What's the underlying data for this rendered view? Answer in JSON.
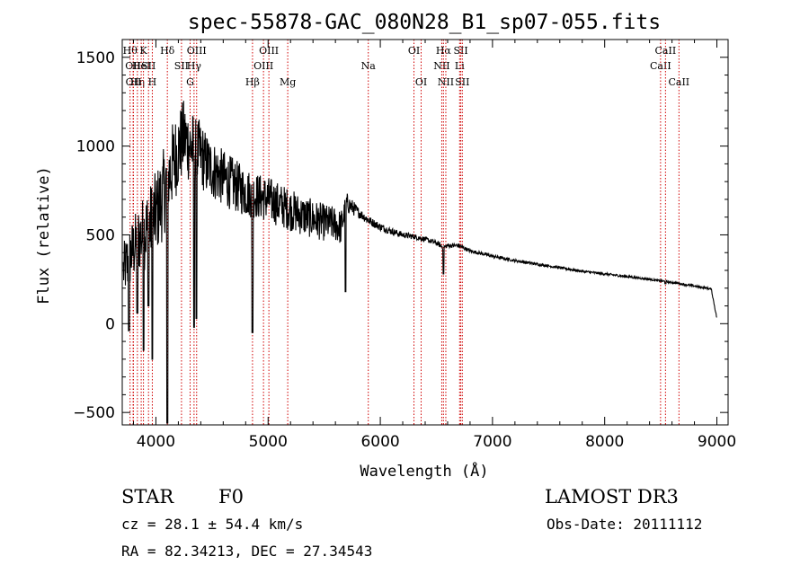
{
  "chart_data": {
    "type": "line",
    "title": "spec-55878-GAC_080N28_B1_sp07-055.fits",
    "xlabel": "Wavelength (Å)",
    "ylabel": "Flux (relative)",
    "xlim": [
      3700,
      9100
    ],
    "ylim": [
      -570,
      1600
    ],
    "xticks": [
      4000,
      5000,
      6000,
      7000,
      8000,
      9000
    ],
    "yticks": [
      -500,
      0,
      500,
      1000,
      1500
    ],
    "grid": false,
    "series": [
      {
        "name": "flux",
        "envelope": {
          "x": [
            3710,
            3750,
            3800,
            3850,
            3900,
            3950,
            4000,
            4050,
            4100,
            4150,
            4200,
            4250,
            4300,
            4350,
            4400,
            4450,
            4500,
            4600,
            4700,
            4800,
            4900,
            5000,
            5100,
            5200,
            5300,
            5400,
            5500,
            5600,
            5650,
            5700,
            5800,
            5900,
            6000,
            6100,
            6200,
            6300,
            6400,
            6500,
            6562,
            6600,
            6700,
            6800,
            6900,
            7000,
            7200,
            7400,
            7600,
            7800,
            8000,
            8200,
            8400,
            8600,
            8800,
            8950,
            9000
          ],
          "y": [
            300,
            350,
            420,
            480,
            520,
            560,
            620,
            700,
            800,
            900,
            980,
            1050,
            1000,
            980,
            950,
            900,
            870,
            820,
            780,
            740,
            720,
            700,
            670,
            640,
            610,
            590,
            570,
            560,
            540,
            680,
            630,
            580,
            545,
            520,
            500,
            490,
            475,
            455,
            430,
            440,
            440,
            410,
            395,
            380,
            355,
            335,
            315,
            295,
            280,
            265,
            250,
            232,
            212,
            195,
            30
          ],
          "noise": [
            150,
            180,
            180,
            200,
            220,
            230,
            240,
            250,
            250,
            240,
            230,
            220,
            210,
            200,
            190,
            180,
            170,
            160,
            150,
            140,
            130,
            130,
            125,
            120,
            115,
            110,
            105,
            100,
            100,
            60,
            30,
            25,
            22,
            20,
            18,
            16,
            15,
            14,
            14,
            13,
            12,
            10,
            10,
            9,
            8,
            8,
            7,
            7,
            7,
            7,
            6,
            6,
            6,
            6,
            6
          ]
        },
        "absorption": [
          {
            "x": 3760,
            "y": -40
          },
          {
            "x": 3835,
            "y": 60
          },
          {
            "x": 3890,
            "y": -150
          },
          {
            "x": 3934,
            "y": 100
          },
          {
            "x": 3968,
            "y": -200
          },
          {
            "x": 4102,
            "y": -560
          },
          {
            "x": 4340,
            "y": -20
          },
          {
            "x": 4361,
            "y": 30
          },
          {
            "x": 4861,
            "y": -50
          },
          {
            "x": 5690,
            "y": 180
          },
          {
            "x": 6563,
            "y": 280
          },
          {
            "x": 8542,
            "y": 225
          }
        ]
      }
    ],
    "lines": [
      {
        "x": 3770,
        "row": 0,
        "label": "Hθ"
      },
      {
        "x": 3797,
        "row": 1,
        "label": "OII"
      },
      {
        "x": 3800,
        "row": 2,
        "label": "OII"
      },
      {
        "x": 3835,
        "row": 2,
        "label": "Hη"
      },
      {
        "x": 3869,
        "row": 1,
        "label": "HeI"
      },
      {
        "x": 3889,
        "row": 0,
        "label": "K"
      },
      {
        "x": 3934,
        "row": 1,
        "label": "SII"
      },
      {
        "x": 3968,
        "row": 2,
        "label": "H"
      },
      {
        "x": 4102,
        "row": 0,
        "label": "Hδ"
      },
      {
        "x": 4228,
        "row": 1,
        "label": "SII"
      },
      {
        "x": 4305,
        "row": 2,
        "label": "G"
      },
      {
        "x": 4340,
        "row": 1,
        "label": "Hγ"
      },
      {
        "x": 4363,
        "row": 0,
        "label": "OIII"
      },
      {
        "x": 4861,
        "row": 2,
        "label": "Hβ"
      },
      {
        "x": 4959,
        "row": 1,
        "label": "OIII"
      },
      {
        "x": 5007,
        "row": 0,
        "label": "OIII"
      },
      {
        "x": 5175,
        "row": 2,
        "label": "Mg"
      },
      {
        "x": 5893,
        "row": 1,
        "label": "Na"
      },
      {
        "x": 6300,
        "row": 0,
        "label": "OI"
      },
      {
        "x": 6364,
        "row": 2,
        "label": "OI"
      },
      {
        "x": 6548,
        "row": 1,
        "label": "NII"
      },
      {
        "x": 6563,
        "row": 0,
        "label": "Hα"
      },
      {
        "x": 6584,
        "row": 2,
        "label": "NII"
      },
      {
        "x": 6707,
        "row": 1,
        "label": "Li"
      },
      {
        "x": 6717,
        "row": 0,
        "label": "SII"
      },
      {
        "x": 6731,
        "row": 2,
        "label": "SII"
      },
      {
        "x": 8498,
        "row": 1,
        "label": "CaII"
      },
      {
        "x": 8542,
        "row": 0,
        "label": "CaII"
      },
      {
        "x": 8662,
        "row": 2,
        "label": "CaII"
      }
    ]
  },
  "info": {
    "object_class": "STAR",
    "subclass": "F0",
    "survey": "LAMOST DR3",
    "redshift": "cz = 28.1 ± 54.4 km/s",
    "obs_date": "Obs-Date: 20111112",
    "coords": "RA =  82.34213, DEC =  27.34543"
  }
}
